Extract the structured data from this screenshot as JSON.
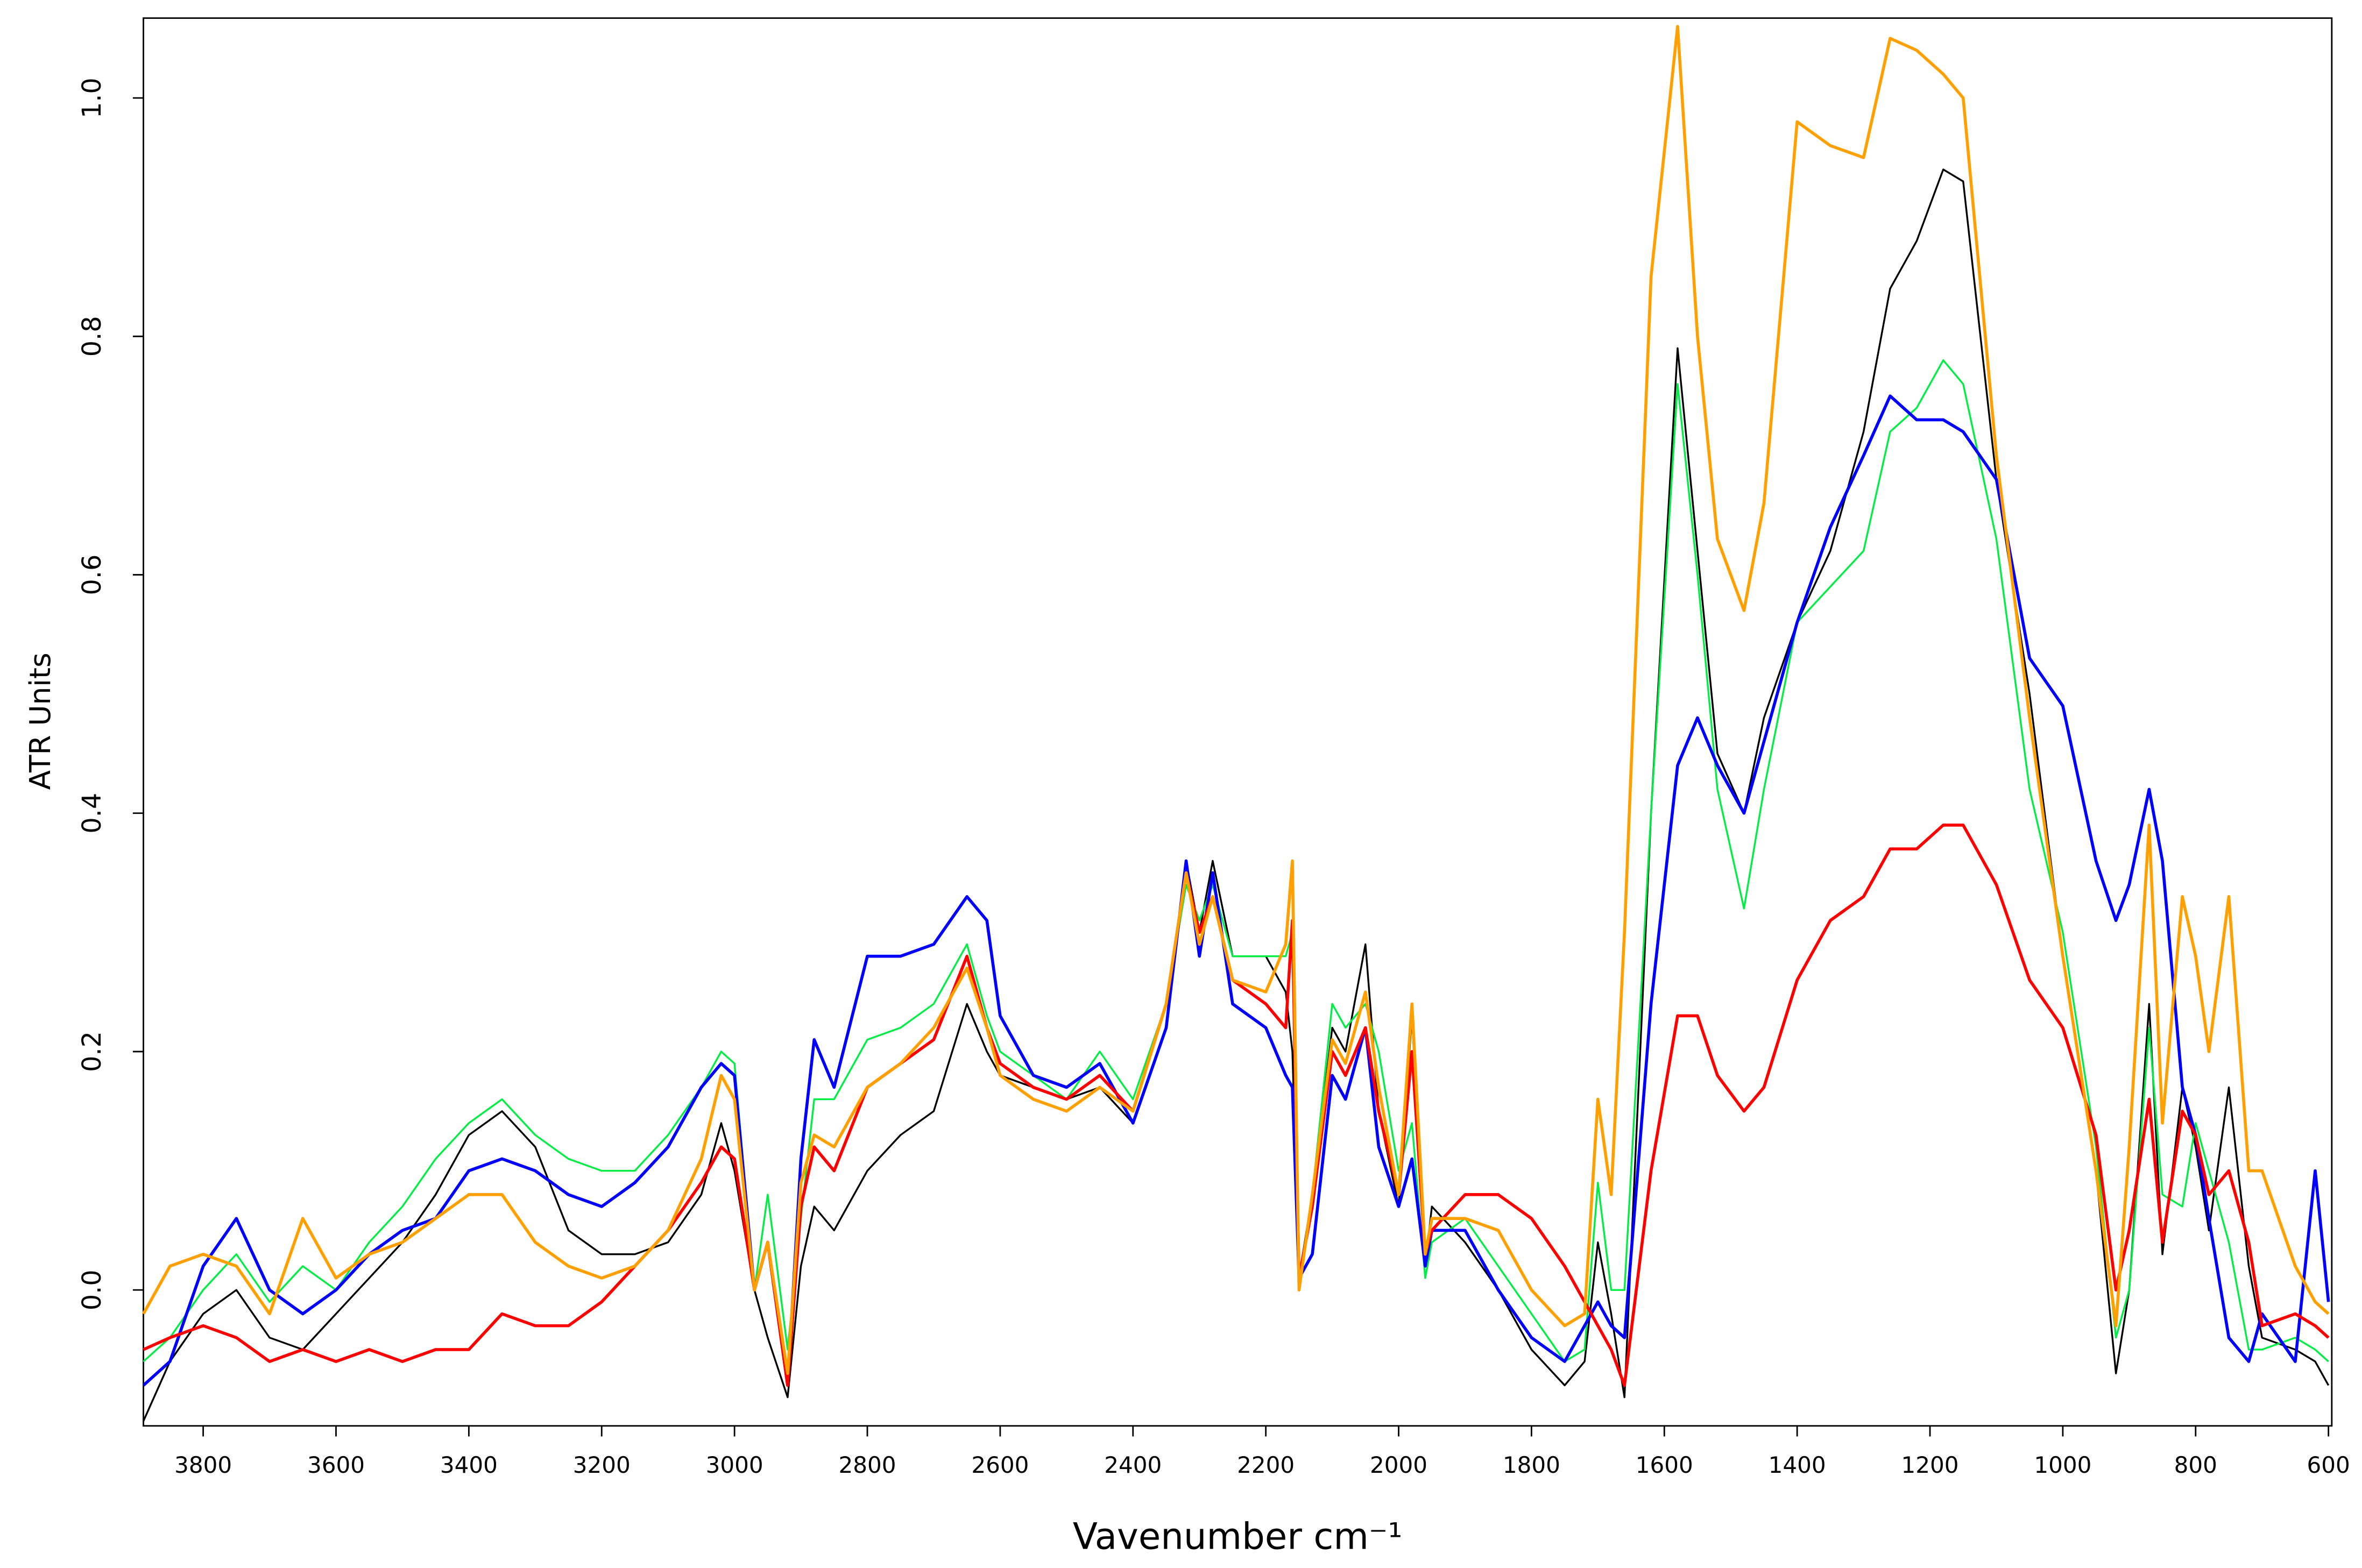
{
  "chart_data": {
    "type": "line",
    "x_label": "Vavenumber cm⁻¹",
    "y_label": "ATR Units",
    "xlim": [
      3890,
      595
    ],
    "ylim": [
      -0.114,
      1.067
    ],
    "xticks": [
      3800,
      3600,
      3400,
      3200,
      3000,
      2800,
      2600,
      2400,
      2200,
      2000,
      1800,
      1600,
      1400,
      1200,
      1000,
      800,
      600
    ],
    "yticks": [
      {
        "value": 0,
        "label": "0.0"
      },
      0.2,
      0.4,
      0.6,
      0.8,
      {
        "value": 1,
        "label": "1.0"
      }
    ],
    "grid": false,
    "x": [
      3890,
      3850,
      3800,
      3750,
      3700,
      3650,
      3600,
      3550,
      3500,
      3450,
      3400,
      3350,
      3300,
      3250,
      3200,
      3150,
      3100,
      3050,
      3020,
      3000,
      2970,
      2950,
      2920,
      2900,
      2880,
      2850,
      2800,
      2750,
      2700,
      2650,
      2620,
      2600,
      2550,
      2500,
      2450,
      2400,
      2350,
      2320,
      2300,
      2280,
      2250,
      2200,
      2170,
      2160,
      2150,
      2130,
      2100,
      2080,
      2050,
      2030,
      2000,
      1980,
      1960,
      1950,
      1900,
      1850,
      1800,
      1750,
      1720,
      1700,
      1680,
      1660,
      1620,
      1580,
      1550,
      1520,
      1480,
      1450,
      1400,
      1350,
      1300,
      1260,
      1220,
      1180,
      1150,
      1100,
      1050,
      1000,
      950,
      920,
      900,
      870,
      850,
      820,
      800,
      780,
      750,
      720,
      700,
      650,
      620,
      600
    ],
    "series": [
      {
        "color": "#000000",
        "width": 1.2,
        "values": [
          -0.11,
          -0.06,
          -0.02,
          0.0,
          -0.04,
          -0.05,
          -0.02,
          0.01,
          0.04,
          0.08,
          0.13,
          0.15,
          0.12,
          0.05,
          0.03,
          0.03,
          0.04,
          0.08,
          0.14,
          0.1,
          0.0,
          -0.04,
          -0.09,
          0.02,
          0.07,
          0.05,
          0.1,
          0.13,
          0.15,
          0.24,
          0.2,
          0.18,
          0.17,
          0.16,
          0.17,
          0.14,
          0.22,
          0.36,
          0.3,
          0.36,
          0.28,
          0.28,
          0.25,
          0.2,
          0.01,
          0.08,
          0.22,
          0.2,
          0.29,
          0.15,
          0.07,
          0.23,
          0.02,
          0.07,
          0.04,
          0.0,
          -0.05,
          -0.08,
          -0.06,
          0.04,
          -0.02,
          -0.09,
          0.4,
          0.79,
          0.62,
          0.45,
          0.4,
          0.48,
          0.56,
          0.62,
          0.72,
          0.84,
          0.88,
          0.94,
          0.93,
          0.68,
          0.5,
          0.28,
          0.1,
          -0.07,
          0.0,
          0.24,
          0.03,
          0.17,
          0.12,
          0.05,
          0.17,
          0.02,
          -0.04,
          -0.05,
          -0.06,
          -0.08
        ]
      },
      {
        "color": "#00ee44",
        "width": 1.2,
        "values": [
          -0.06,
          -0.04,
          0.0,
          0.03,
          -0.01,
          0.02,
          0.0,
          0.04,
          0.07,
          0.11,
          0.14,
          0.16,
          0.13,
          0.11,
          0.1,
          0.1,
          0.13,
          0.17,
          0.2,
          0.19,
          0.0,
          0.08,
          -0.05,
          0.06,
          0.16,
          0.16,
          0.21,
          0.22,
          0.24,
          0.29,
          0.23,
          0.2,
          0.18,
          0.16,
          0.2,
          0.16,
          0.24,
          0.34,
          0.31,
          0.34,
          0.28,
          0.28,
          0.28,
          0.3,
          0.0,
          0.08,
          0.24,
          0.22,
          0.24,
          0.2,
          0.1,
          0.14,
          0.01,
          0.04,
          0.06,
          0.02,
          -0.02,
          -0.06,
          -0.05,
          0.09,
          0.0,
          0.0,
          0.4,
          0.76,
          0.6,
          0.42,
          0.32,
          0.42,
          0.56,
          0.59,
          0.62,
          0.72,
          0.74,
          0.78,
          0.76,
          0.63,
          0.42,
          0.3,
          0.12,
          -0.04,
          0.0,
          0.22,
          0.08,
          0.07,
          0.14,
          0.1,
          0.04,
          -0.05,
          -0.05,
          -0.04,
          -0.05,
          -0.06
        ]
      },
      {
        "color": "#0000ff",
        "width": 2,
        "values": [
          -0.08,
          -0.06,
          0.02,
          0.06,
          0.0,
          -0.02,
          0.0,
          0.03,
          0.05,
          0.06,
          0.1,
          0.11,
          0.1,
          0.08,
          0.07,
          0.09,
          0.12,
          0.17,
          0.19,
          0.18,
          0.0,
          0.04,
          -0.08,
          0.11,
          0.21,
          0.17,
          0.28,
          0.28,
          0.29,
          0.33,
          0.31,
          0.23,
          0.18,
          0.17,
          0.19,
          0.14,
          0.22,
          0.36,
          0.28,
          0.35,
          0.24,
          0.22,
          0.18,
          0.17,
          0.01,
          0.03,
          0.18,
          0.16,
          0.22,
          0.12,
          0.07,
          0.11,
          0.02,
          0.05,
          0.05,
          0.0,
          -0.04,
          -0.06,
          -0.03,
          -0.01,
          -0.03,
          -0.04,
          0.24,
          0.44,
          0.48,
          0.44,
          0.4,
          0.46,
          0.56,
          0.64,
          0.7,
          0.75,
          0.73,
          0.73,
          0.72,
          0.68,
          0.53,
          0.49,
          0.36,
          0.31,
          0.34,
          0.42,
          0.36,
          0.17,
          0.13,
          0.06,
          -0.04,
          -0.06,
          -0.02,
          -0.06,
          0.1,
          -0.01
        ]
      },
      {
        "color": "#ff0000",
        "width": 2,
        "values": [
          -0.05,
          -0.04,
          -0.03,
          -0.04,
          -0.06,
          -0.05,
          -0.06,
          -0.05,
          -0.06,
          -0.05,
          -0.05,
          -0.02,
          -0.03,
          -0.03,
          -0.01,
          0.02,
          0.05,
          0.09,
          0.12,
          0.11,
          0.0,
          0.04,
          -0.08,
          0.07,
          0.12,
          0.1,
          0.17,
          0.19,
          0.21,
          0.28,
          0.22,
          0.19,
          0.17,
          0.16,
          0.18,
          0.15,
          0.24,
          0.35,
          0.3,
          0.33,
          0.26,
          0.24,
          0.22,
          0.31,
          0.01,
          0.07,
          0.2,
          0.18,
          0.22,
          0.15,
          0.08,
          0.2,
          0.03,
          0.05,
          0.08,
          0.08,
          0.06,
          0.02,
          -0.01,
          -0.03,
          -0.05,
          -0.08,
          0.1,
          0.23,
          0.23,
          0.18,
          0.15,
          0.17,
          0.26,
          0.31,
          0.33,
          0.37,
          0.37,
          0.39,
          0.39,
          0.34,
          0.26,
          0.22,
          0.13,
          0.0,
          0.05,
          0.16,
          0.04,
          0.15,
          0.13,
          0.08,
          0.1,
          0.04,
          -0.03,
          -0.02,
          -0.03,
          -0.04
        ]
      },
      {
        "color": "#ffa000",
        "width": 2,
        "values": [
          -0.02,
          0.02,
          0.03,
          0.02,
          -0.02,
          0.06,
          0.01,
          0.03,
          0.04,
          0.06,
          0.08,
          0.08,
          0.04,
          0.02,
          0.01,
          0.02,
          0.05,
          0.11,
          0.18,
          0.16,
          0.0,
          0.04,
          -0.07,
          0.09,
          0.13,
          0.12,
          0.17,
          0.19,
          0.22,
          0.27,
          0.22,
          0.18,
          0.16,
          0.15,
          0.17,
          0.15,
          0.24,
          0.35,
          0.29,
          0.33,
          0.26,
          0.25,
          0.29,
          0.36,
          0.0,
          0.08,
          0.21,
          0.19,
          0.25,
          0.17,
          0.08,
          0.24,
          0.03,
          0.06,
          0.06,
          0.05,
          0.0,
          -0.03,
          -0.02,
          0.16,
          0.08,
          0.3,
          0.85,
          1.06,
          0.8,
          0.63,
          0.57,
          0.66,
          0.98,
          0.96,
          0.95,
          1.05,
          1.04,
          1.02,
          1.0,
          0.7,
          0.48,
          0.28,
          0.1,
          -0.03,
          0.12,
          0.39,
          0.14,
          0.33,
          0.28,
          0.2,
          0.33,
          0.1,
          0.1,
          0.02,
          -0.01,
          -0.02
        ]
      }
    ]
  }
}
